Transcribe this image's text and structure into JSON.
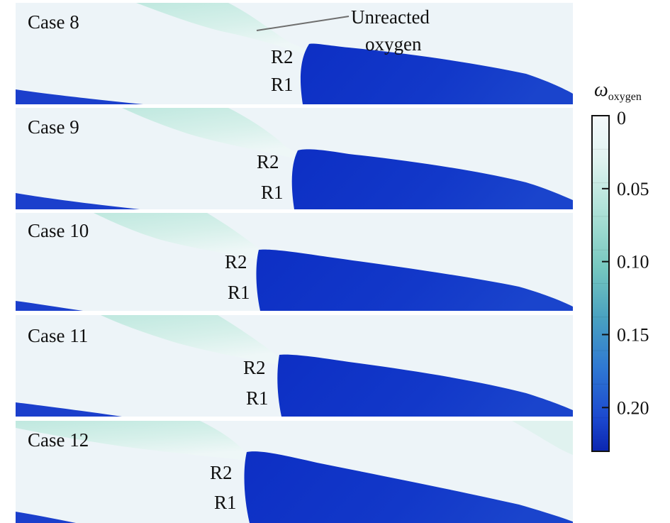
{
  "panels": [
    {
      "label": "Case 8",
      "upper_label": "R2",
      "lower_label": "R1"
    },
    {
      "label": "Case 9",
      "upper_label": "R2",
      "lower_label": "R1"
    },
    {
      "label": "Case 10",
      "upper_label": "R2",
      "lower_label": "R1"
    },
    {
      "label": "Case 11",
      "upper_label": "R2",
      "lower_label": "R1"
    },
    {
      "label": "Case 12",
      "upper_label": "R2",
      "lower_label": "R1"
    }
  ],
  "annotation": {
    "line1": "Unreacted",
    "line2": "oxygen"
  },
  "colorbar": {
    "symbol": "ω",
    "subscript": "oxygen",
    "ticks": [
      "0",
      "0.05",
      "0.10",
      "0.15",
      "0.20"
    ],
    "range": [
      0,
      0.23
    ],
    "colors": [
      "#f2f7fb",
      "#dff3f0",
      "#b3e3d9",
      "#8dd4c6",
      "#6cc0ba",
      "#50a7bd",
      "#3a8ccb",
      "#2a6fd6",
      "#1d4fd0",
      "#0c2cb8"
    ]
  }
}
